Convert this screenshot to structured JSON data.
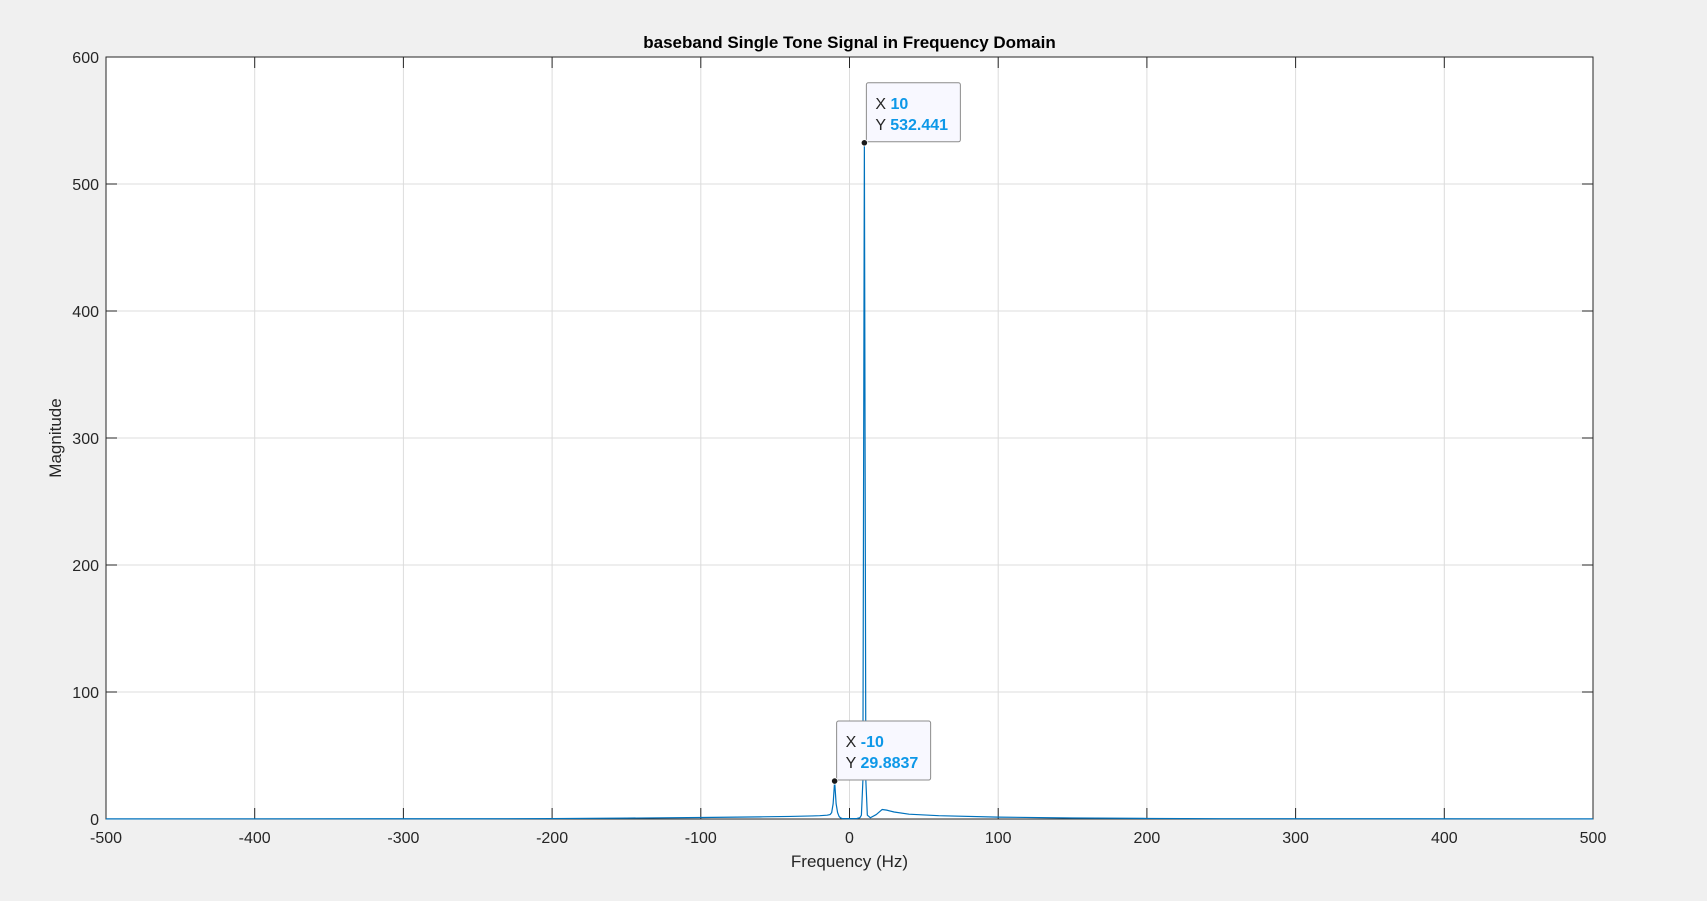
{
  "chart_data": {
    "type": "line",
    "title": "baseband Single Tone Signal in Frequency Domain",
    "xlabel": "Frequency (Hz)",
    "ylabel": "Magnitude",
    "xlim": [
      -500,
      500
    ],
    "ylim": [
      0,
      600
    ],
    "xticks": [
      -500,
      -400,
      -300,
      -200,
      -100,
      0,
      100,
      200,
      300,
      400,
      500
    ],
    "yticks": [
      0,
      100,
      200,
      300,
      400,
      500,
      600
    ],
    "xtick_labels": [
      "-500",
      "-400",
      "-300",
      "-200",
      "-100",
      "0",
      "100",
      "200",
      "300",
      "400",
      "500"
    ],
    "ytick_labels": [
      "0",
      "100",
      "200",
      "300",
      "400",
      "500",
      "600"
    ],
    "grid": true,
    "series": [
      {
        "color": "#0072BD",
        "x": [
          -500,
          -250,
          -200,
          -150,
          -100,
          -60,
          -40,
          -25,
          -20,
          -15,
          -13,
          -12,
          -11,
          -10,
          -9,
          -8,
          -7,
          -6,
          -5,
          0,
          5,
          7,
          8,
          9,
          10,
          11,
          12,
          14,
          18,
          22,
          25,
          30,
          40,
          60,
          100,
          150,
          200,
          250,
          500
        ],
        "y": [
          0.1,
          0.2,
          0.35,
          0.7,
          1.2,
          1.7,
          2.0,
          2.4,
          2.6,
          3.0,
          3.5,
          5,
          12,
          29.8837,
          12,
          5,
          2.0,
          0.8,
          0.4,
          0.3,
          0.4,
          1.0,
          3.0,
          30,
          532.441,
          30,
          3.0,
          1.0,
          3.5,
          7.5,
          7.0,
          5.5,
          3.8,
          2.6,
          1.5,
          0.8,
          0.45,
          0.25,
          0.1
        ]
      }
    ],
    "datatips": [
      {
        "x_label": "X",
        "y_label": "Y",
        "x_value": "10",
        "y_value": "532.441",
        "x": 10,
        "y": 532.441
      },
      {
        "x_label": "X",
        "y_label": "Y",
        "x_value": "-10",
        "y_value": "29.8837",
        "x": -10,
        "y": 29.8837
      }
    ],
    "colors": {
      "line": "#0072BD",
      "datatip_value": "#0D98E8",
      "grid": "#dcdcdc",
      "axis": "#262626"
    }
  }
}
